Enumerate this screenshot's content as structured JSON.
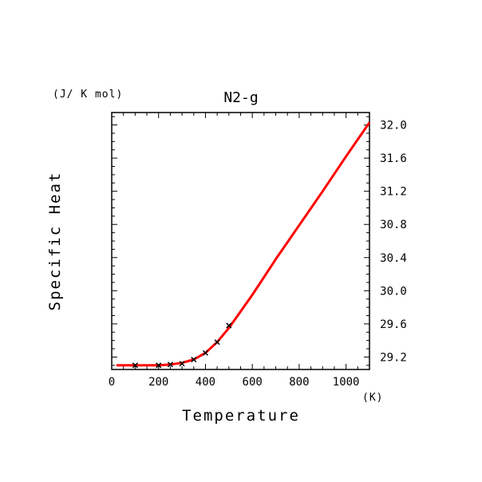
{
  "chart_data": {
    "type": "line",
    "title": "N2-g",
    "xlabel": "Temperature",
    "ylabel": "Specific Heat",
    "x_unit": "(K)",
    "y_unit": "(J/ K mol)",
    "xlim": [
      0,
      1100
    ],
    "ylim": [
      29.05,
      32.15
    ],
    "xticks": [
      "0",
      "200",
      "400",
      "600",
      "800",
      "1000"
    ],
    "yticks": [
      "29.2",
      "29.6",
      "30.0",
      "30.4",
      "30.8",
      "31.2",
      "31.6",
      "32.0"
    ],
    "grid": false,
    "series": [
      {
        "style": "line",
        "color": "#ff0000",
        "x": [
          20,
          100,
          150,
          200,
          250,
          300,
          350,
          400,
          450,
          500,
          600,
          700,
          800,
          900,
          1000,
          1100
        ],
        "y": [
          29.1,
          29.1,
          29.1,
          29.1,
          29.11,
          29.13,
          29.17,
          29.25,
          29.38,
          29.55,
          29.95,
          30.38,
          30.79,
          31.2,
          31.62,
          32.03
        ]
      },
      {
        "style": "markers",
        "marker": "x",
        "color": "#000000",
        "x": [
          100,
          200,
          250,
          300,
          350,
          400,
          450,
          500
        ],
        "y": [
          29.1,
          29.1,
          29.11,
          29.12,
          29.17,
          29.25,
          29.38,
          29.58
        ]
      }
    ]
  }
}
